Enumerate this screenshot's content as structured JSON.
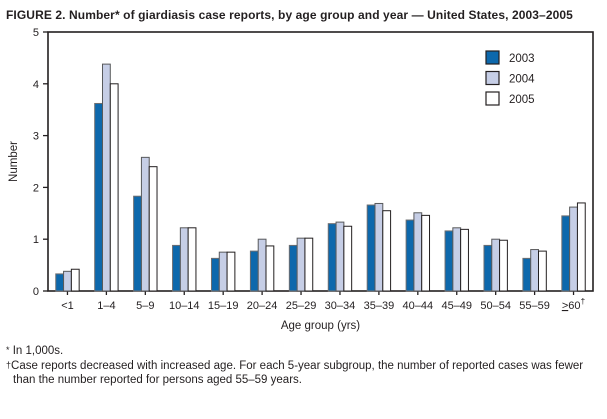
{
  "title": "FIGURE 2. Number* of giardiasis case reports, by age group and year — United States, 2003–2005",
  "chart_data": {
    "type": "bar",
    "title": "FIGURE 2. Number* of giardiasis case reports, by age group and year — United States, 2003–2005",
    "xlabel": "Age group (yrs)",
    "ylabel": "Number",
    "ylim": [
      0,
      5
    ],
    "yticks": [
      0,
      1,
      2,
      3,
      4,
      5
    ],
    "grid": false,
    "legend_position": "top-right-inside",
    "categories": [
      "<1",
      "1–4",
      "5–9",
      "10–14",
      "15–19",
      "20–24",
      "25–29",
      "30–34",
      "35–39",
      "40–44",
      "45–49",
      "50–54",
      "55–59",
      ">60†"
    ],
    "series": [
      {
        "name": "2003",
        "color": "#0d68ac",
        "stroke": "#6d6e71",
        "values": [
          0.33,
          3.62,
          1.83,
          0.88,
          0.63,
          0.77,
          0.88,
          1.3,
          1.66,
          1.37,
          1.16,
          0.88,
          0.63,
          1.45
        ]
      },
      {
        "name": "2004",
        "color": "#c6cee6",
        "stroke": "#58595b",
        "values": [
          0.38,
          4.38,
          2.58,
          1.22,
          0.75,
          1.0,
          1.02,
          1.33,
          1.69,
          1.51,
          1.22,
          1.0,
          0.8,
          1.62
        ]
      },
      {
        "name": "2005",
        "color": "#ffffff",
        "stroke": "#231f20",
        "values": [
          0.42,
          4.0,
          2.4,
          1.22,
          0.75,
          0.87,
          1.02,
          1.25,
          1.55,
          1.46,
          1.19,
          0.98,
          0.77,
          1.7
        ]
      }
    ],
    "axis_color": "#231f20"
  },
  "footnotes": [
    {
      "marker": "*",
      "text": "In 1,000s."
    },
    {
      "marker": "†",
      "text": "Case reports decreased with increased age. For each 5-year subgroup, the number of reported cases was fewer than the number reported for persons aged 55–59 years."
    }
  ]
}
